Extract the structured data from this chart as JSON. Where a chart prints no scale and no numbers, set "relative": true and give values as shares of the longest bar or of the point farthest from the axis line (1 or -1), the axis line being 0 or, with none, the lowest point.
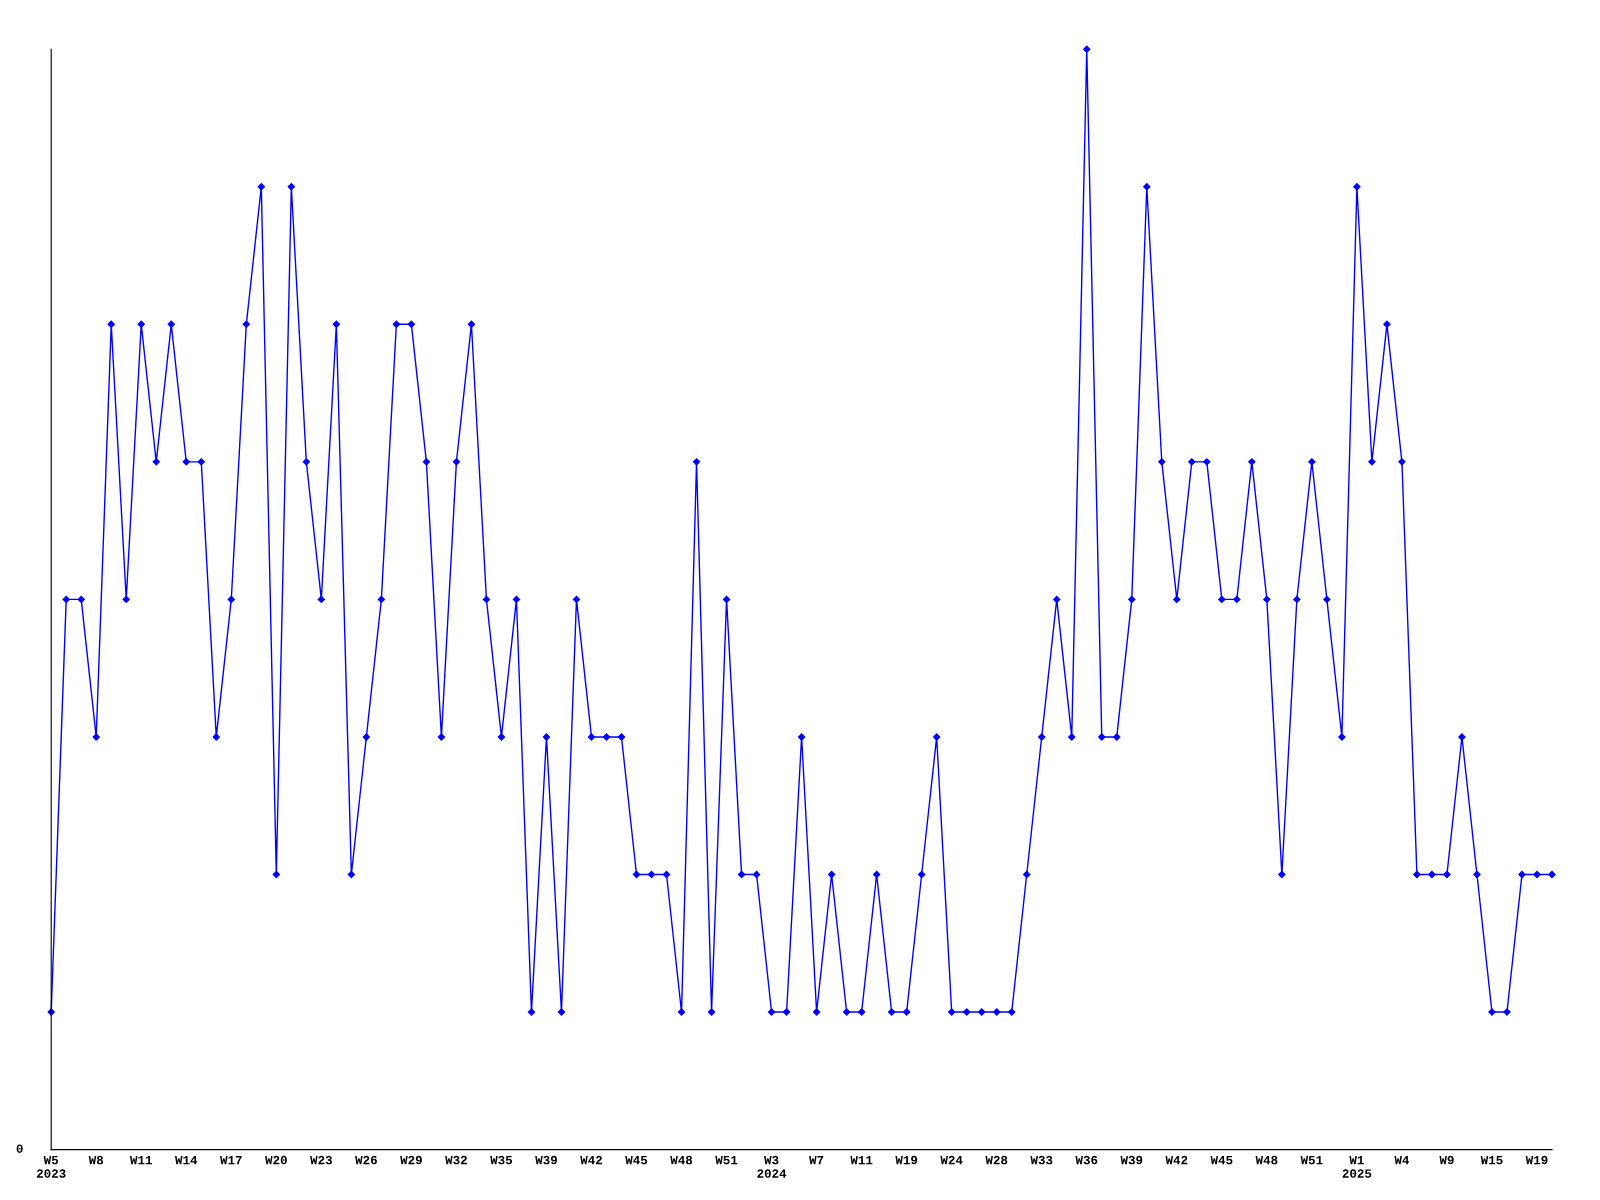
{
  "chart_data": {
    "type": "line",
    "relative": true,
    "marker": "diamond",
    "line_style": "solid",
    "grid": false,
    "legend": false,
    "categories": [
      "W5\n2023",
      null,
      null,
      "W8",
      null,
      null,
      "W11",
      null,
      null,
      "W14",
      null,
      null,
      "W17",
      null,
      null,
      "W20",
      null,
      null,
      "W23",
      null,
      null,
      "W26",
      null,
      null,
      "W29",
      null,
      null,
      "W32",
      null,
      null,
      "W35",
      null,
      null,
      "W39",
      null,
      null,
      "W42",
      null,
      null,
      "W45",
      null,
      null,
      "W48",
      null,
      null,
      "W51",
      null,
      null,
      "W3\n2024",
      null,
      null,
      "W7",
      null,
      null,
      "W11",
      null,
      null,
      "W19",
      null,
      null,
      "W24",
      null,
      null,
      "W28",
      null,
      null,
      "W33",
      null,
      null,
      "W36",
      null,
      null,
      "W39",
      null,
      null,
      "W42",
      null,
      null,
      "W45",
      null,
      null,
      "W48",
      null,
      null,
      "W51",
      null,
      null,
      "W1\n2025",
      null,
      null,
      "W4",
      null,
      null,
      "W9",
      null,
      null,
      "W15",
      null,
      null,
      "W19",
      null
    ],
    "series": [
      {
        "color": "#0000ff",
        "values": [
          0.125,
          0.5,
          0.5,
          0.375,
          0.75,
          0.5,
          0.75,
          0.625,
          0.75,
          0.625,
          0.625,
          0.375,
          0.5,
          0.75,
          0.875,
          0.25,
          0.875,
          0.625,
          0.5,
          0.75,
          0.25,
          0.375,
          0.5,
          0.75,
          0.75,
          0.625,
          0.375,
          0.625,
          0.75,
          0.5,
          0.375,
          0.5,
          0.125,
          0.375,
          0.125,
          0.5,
          0.375,
          0.375,
          0.375,
          0.25,
          0.25,
          0.25,
          0.125,
          0.625,
          0.125,
          0.5,
          0.25,
          0.25,
          0.125,
          0.125,
          0.375,
          0.125,
          0.25,
          0.125,
          0.125,
          0.25,
          0.125,
          0.125,
          0.25,
          0.375,
          0.125,
          0.125,
          0.125,
          0.125,
          0.125,
          0.25,
          0.375,
          0.5,
          0.375,
          1,
          0.375,
          0.375,
          0.5,
          0.875,
          0.625,
          0.5,
          0.625,
          0.625,
          0.5,
          0.5,
          0.625,
          0.5,
          0.25,
          0.5,
          0.625,
          0.5,
          0.375,
          0.875,
          0.625,
          0.75,
          0.625,
          0.25,
          0.25,
          0.25,
          0.375,
          0.25,
          0.125,
          0.125,
          0.25,
          0.25,
          0.25
        ]
      }
    ],
    "annotations": [
      "0"
    ]
  }
}
